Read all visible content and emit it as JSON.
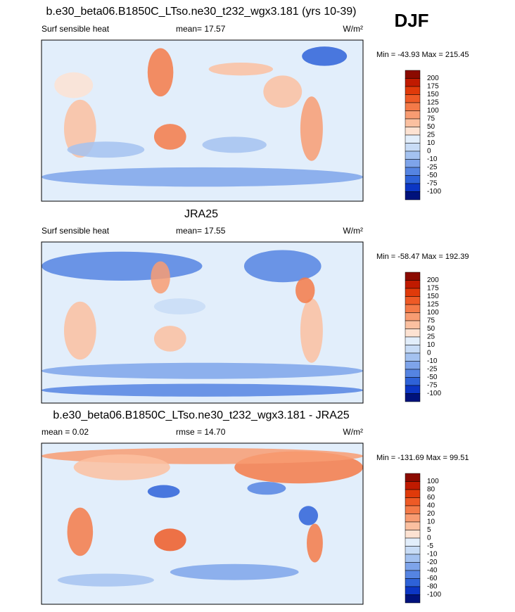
{
  "header": {
    "season": "DJF"
  },
  "panels": [
    {
      "title": "b.e30_beta06.B1850C_LTso.ne30_t232_wgx3.181 (yrs 10-39)",
      "left_label": "Surf sensible heat",
      "center_label": "mean=  17.57",
      "units": "W/m²",
      "min_max": "Min = -43.93 Max = 215.45",
      "colorbar": {
        "labels": [
          200,
          175,
          150,
          125,
          100,
          75,
          50,
          25,
          10,
          0,
          -10,
          -25,
          -50,
          -75,
          -100
        ],
        "colors": [
          "#8b0a00",
          "#c01a00",
          "#e03a0a",
          "#ee5a26",
          "#f47a48",
          "#f89c72",
          "#fbc0a0",
          "#fde2d2",
          "#e2eefb",
          "#c8dcf6",
          "#a4c2f0",
          "#7ea4ea",
          "#5584e2",
          "#2e62d8",
          "#0c36c4",
          "#00127c"
        ]
      }
    },
    {
      "title": "JRA25",
      "left_label": "Surf sensible heat",
      "center_label": "mean=  17.55",
      "units": "W/m²",
      "min_max": "Min = -58.47 Max = 192.39",
      "colorbar": {
        "labels": [
          200,
          175,
          150,
          125,
          100,
          75,
          50,
          25,
          10,
          0,
          -10,
          -25,
          -50,
          -75,
          -100
        ],
        "colors": [
          "#8b0a00",
          "#c01a00",
          "#e03a0a",
          "#ee5a26",
          "#f47a48",
          "#f89c72",
          "#fbc0a0",
          "#fde2d2",
          "#e2eefb",
          "#c8dcf6",
          "#a4c2f0",
          "#7ea4ea",
          "#5584e2",
          "#2e62d8",
          "#0c36c4",
          "#00127c"
        ]
      }
    },
    {
      "title": "b.e30_beta06.B1850C_LTso.ne30_t232_wgx3.181 - JRA25",
      "left_label": "mean =  0.02",
      "center_label": "rmse =  14.70",
      "units": "W/m²",
      "min_max": "Min = -131.69 Max =  99.51",
      "colorbar": {
        "labels": [
          100,
          80,
          60,
          40,
          20,
          10,
          5,
          0,
          -5,
          -10,
          -20,
          -40,
          -60,
          -80,
          -100
        ],
        "colors": [
          "#8b0a00",
          "#c01a00",
          "#e03a0a",
          "#ee5a26",
          "#f47a48",
          "#f89c72",
          "#fbc0a0",
          "#fde2d2",
          "#e2eefb",
          "#c8dcf6",
          "#a4c2f0",
          "#7ea4ea",
          "#5584e2",
          "#2e62d8",
          "#0c36c4",
          "#00127c"
        ]
      }
    }
  ]
}
